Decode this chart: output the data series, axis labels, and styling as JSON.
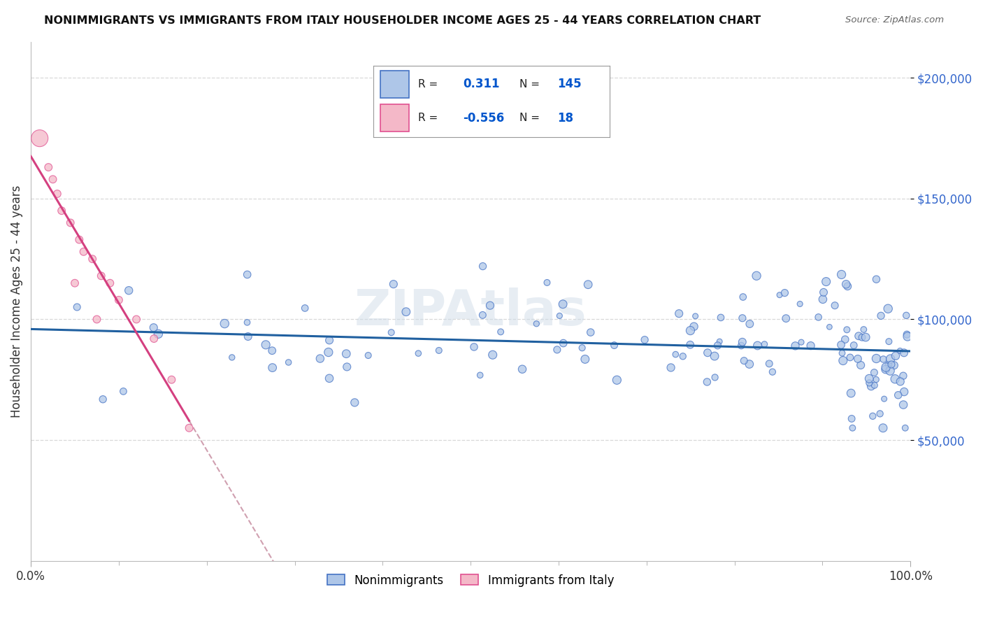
{
  "title": "NONIMMIGRANTS VS IMMIGRANTS FROM ITALY HOUSEHOLDER INCOME AGES 25 - 44 YEARS CORRELATION CHART",
  "source": "Source: ZipAtlas.com",
  "ylabel": "Householder Income Ages 25 - 44 years",
  "blue_color": "#aec6e8",
  "blue_edge_color": "#4472c4",
  "pink_color": "#f4b8c8",
  "pink_edge_color": "#e05090",
  "pink_line_color": "#d44080",
  "blue_line_color": "#2060a0",
  "pink_dash_color": "#d0a0b0",
  "bg_color": "#ffffff",
  "grid_color": "#d8d8d8",
  "ytick_color": "#3366cc",
  "title_color": "#111111",
  "source_color": "#666666",
  "ylabel_color": "#333333",
  "watermark_color": "#d0dce8",
  "legend_r1_val": "0.311",
  "legend_r1_n": "145",
  "legend_r2_val": "-0.556",
  "legend_r2_n": "18",
  "legend_label1": "Nonimmigrants",
  "legend_label2": "Immigrants from Italy"
}
